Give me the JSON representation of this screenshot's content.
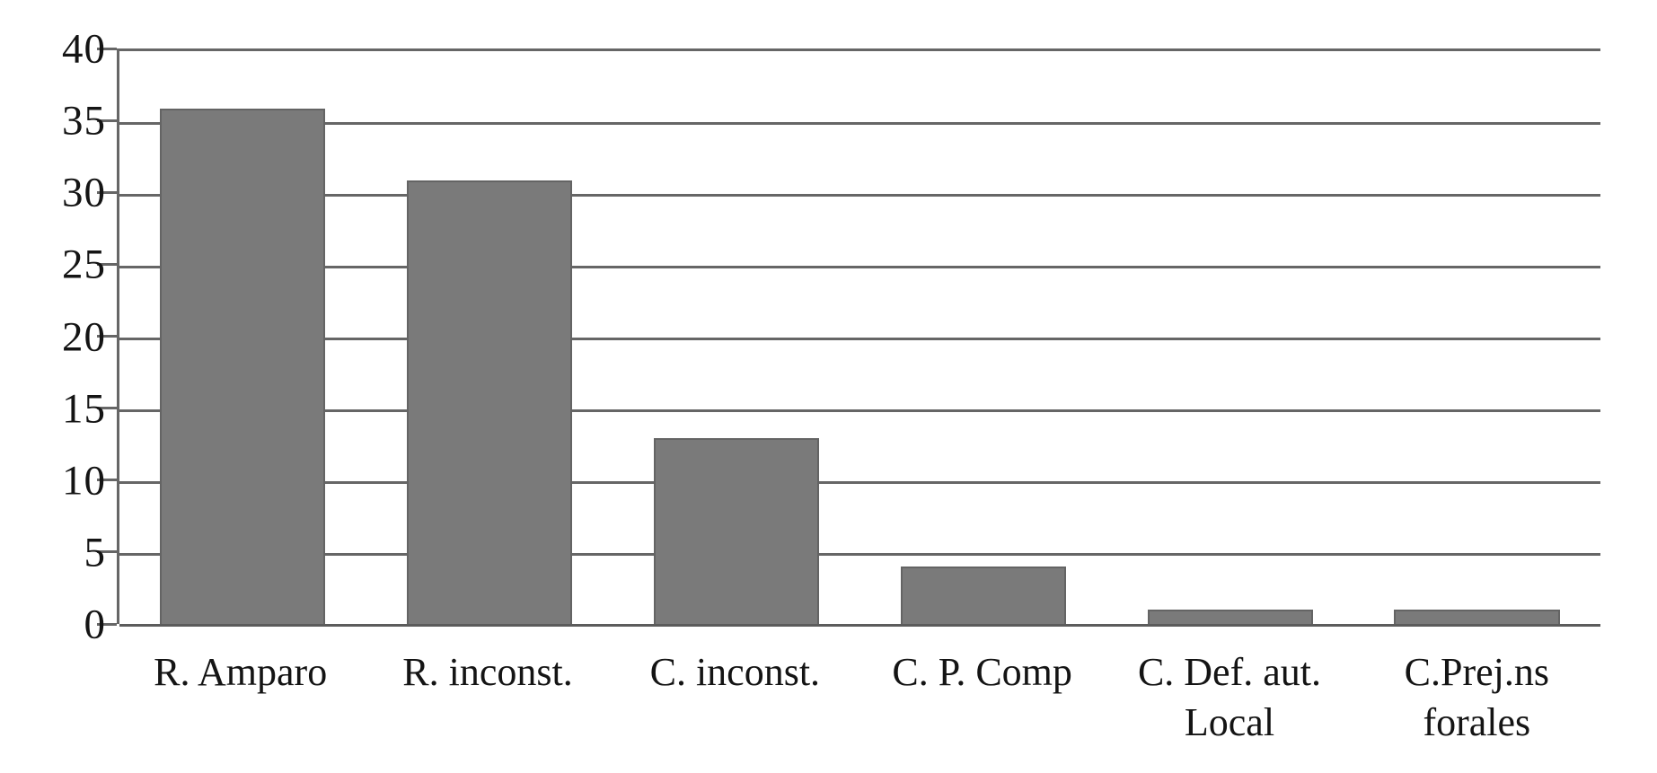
{
  "chart_data": {
    "type": "bar",
    "title": "",
    "subtitle": "",
    "categories": [
      "R. Amparo",
      "R. inconst.",
      "C. inconst.",
      "C. P. Comp",
      "C. Def. aut.\nLocal",
      "C.Prej.ns\nforales"
    ],
    "values": [
      36,
      31,
      13,
      4,
      1,
      1
    ],
    "xlabel": "",
    "ylabel": "",
    "ylim": [
      0,
      40
    ],
    "yticks": [
      0,
      5,
      10,
      15,
      20,
      25,
      30,
      35,
      40
    ],
    "ytick_step": 5,
    "grid": "horizontal",
    "legend_position": "none",
    "colors": {
      "bar_fill": "#7a7a7a",
      "bar_border": "#646464",
      "gridline": "#666666",
      "axis": "#666666",
      "text": "#141414",
      "background": "#ffffff"
    }
  }
}
